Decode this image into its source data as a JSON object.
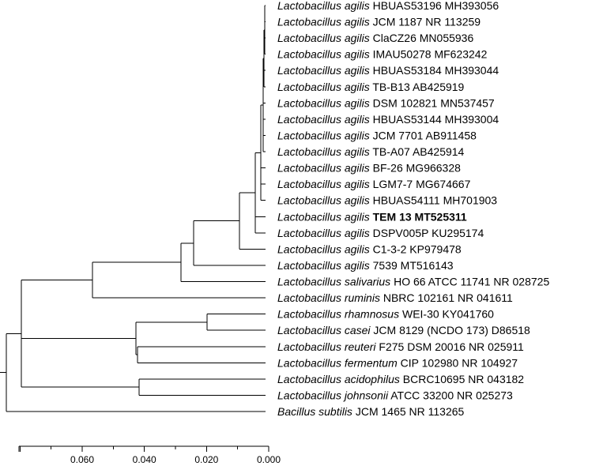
{
  "tree": {
    "leaves": [
      {
        "species": "Lactobacillus agilis",
        "strain": "HBUAS53196 MH393056",
        "bold": false
      },
      {
        "species": "Lactobacillus agilis",
        "strain": "JCM 1187 NR 113259",
        "bold": false
      },
      {
        "species": "Lactobacillus agilis",
        "strain": "ClaCZ26 MN055936",
        "bold": false
      },
      {
        "species": "Lactobacillus agilis",
        "strain": "IMAU50278 MF623242",
        "bold": false
      },
      {
        "species": "Lactobacillus agilis",
        "strain": "HBUAS53184 MH393044",
        "bold": false
      },
      {
        "species": "Lactobacillus agilis",
        "strain": "TB-B13 AB425919",
        "bold": false
      },
      {
        "species": "Lactobacillus agilis",
        "strain": "DSM 102821 MN537457",
        "bold": false
      },
      {
        "species": "Lactobacillus agilis",
        "strain": "HBUAS53144 MH393004",
        "bold": false
      },
      {
        "species": "Lactobacillus agilis",
        "strain": "JCM 7701 AB911458",
        "bold": false
      },
      {
        "species": "Lactobacillus agilis",
        "strain": "TB-A07 AB425914",
        "bold": false
      },
      {
        "species": "Lactobacillus agilis",
        "strain": "BF-26 MG966328",
        "bold": false
      },
      {
        "species": "Lactobacillus agilis",
        "strain": "LGM7-7 MG674667",
        "bold": false
      },
      {
        "species": "Lactobacillus agilis",
        "strain": "HBUAS54111 MH701903",
        "bold": false
      },
      {
        "species": "Lactobacillus agilis",
        "strain": "TEM 13 MT525311",
        "bold": true
      },
      {
        "species": "Lactobacillus agilis",
        "strain": "DSPV005P KU295174",
        "bold": false
      },
      {
        "species": "Lactobacillus agilis",
        "strain": "C1-3-2 KP979478",
        "bold": false
      },
      {
        "species": "Lactobacillus agilis",
        "strain": "7539 MT516143",
        "bold": false
      },
      {
        "species": "Lactobacillus salivarius",
        "strain": "HO 66 ATCC 11741 NR 028725",
        "bold": false
      },
      {
        "species": "Lactobacillus ruminis",
        "strain": "NBRC 102161 NR 041611",
        "bold": false
      },
      {
        "species": "Lactobacillus rhamnosus",
        "strain": "WEI-30 KY041760",
        "bold": false
      },
      {
        "species": "Lactobacillus casei",
        "strain": "JCM 8129 (NCDO 173) D86518",
        "bold": false
      },
      {
        "species": "Lactobacillus reuteri",
        "strain": "F275 DSM 20016 NR 025911",
        "bold": false
      },
      {
        "species": "Lactobacillus fermentum",
        "strain": "CIP 102980 NR 104927",
        "bold": false
      },
      {
        "species": "Lactobacillus acidophilus",
        "strain": "BCRC10695 NR 043182",
        "bold": false
      },
      {
        "species": "Lactobacillus johnsonii",
        "strain": "ATCC 33200 NR 025273",
        "bold": false
      },
      {
        "species": "Bacillus subtilis",
        "strain": "JCM 1465 NR 113265",
        "bold": false
      }
    ],
    "scale": {
      "ticks": [
        "0.060",
        "0.040",
        "0.020",
        "0.000"
      ]
    }
  }
}
